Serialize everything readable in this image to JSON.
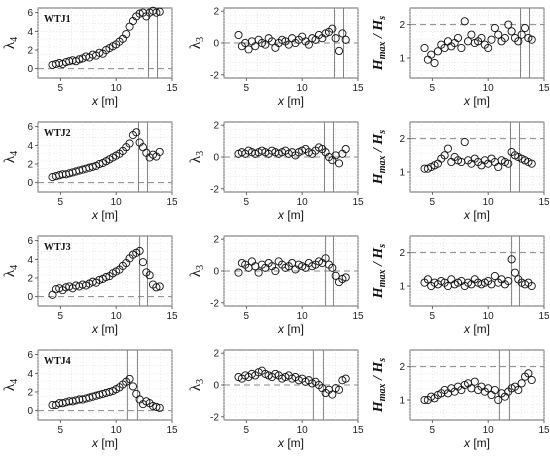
{
  "chart_data": [
    {
      "type": "scatter",
      "row": "WTJ1",
      "panel_label": "WTJ1",
      "ylabel": "λ4",
      "xlabel": "x [m]",
      "xlim": [
        3,
        15
      ],
      "ylim": [
        -1,
        6.5
      ],
      "xticks": [
        5,
        10,
        15
      ],
      "yticks": [
        0,
        2,
        4,
        6
      ],
      "dashed_y": 0,
      "vlines": [
        12.9,
        13.7
      ],
      "grid": true,
      "x": [
        4.3,
        4.6,
        4.9,
        5.2,
        5.5,
        5.8,
        6.1,
        6.4,
        6.7,
        7.0,
        7.3,
        7.6,
        7.9,
        8.2,
        8.5,
        8.8,
        9.1,
        9.4,
        9.7,
        10.0,
        10.3,
        10.6,
        10.9,
        11.2,
        11.5,
        11.8,
        12.1,
        12.4,
        12.7,
        13.0,
        13.3,
        13.6,
        13.9
      ],
      "y": [
        0.4,
        0.5,
        0.6,
        0.5,
        0.7,
        0.8,
        0.9,
        0.8,
        1.0,
        1.1,
        1.3,
        1.2,
        1.5,
        1.4,
        1.7,
        1.6,
        2.0,
        2.2,
        2.4,
        2.6,
        2.9,
        3.2,
        3.7,
        4.5,
        5.1,
        5.6,
        5.9,
        6.0,
        5.6,
        6.0,
        6.2,
        6.0,
        6.1
      ]
    },
    {
      "type": "scatter",
      "row": "WTJ1",
      "ylabel": "λ3",
      "xlabel": "x [m]",
      "xlim": [
        3,
        15
      ],
      "ylim": [
        -2.2,
        2.2
      ],
      "xticks": [
        5,
        10,
        15
      ],
      "yticks": [
        -2,
        0,
        2
      ],
      "dashed_y": 0,
      "vlines": [
        12.9,
        13.7
      ],
      "grid": true,
      "x": [
        4.3,
        4.6,
        4.9,
        5.2,
        5.5,
        5.8,
        6.1,
        6.4,
        6.7,
        7.0,
        7.3,
        7.6,
        7.9,
        8.2,
        8.5,
        8.8,
        9.1,
        9.4,
        9.7,
        10.0,
        10.3,
        10.6,
        10.9,
        11.2,
        11.5,
        11.8,
        12.1,
        12.4,
        12.7,
        13.0,
        13.3,
        13.6,
        13.9
      ],
      "y": [
        0.5,
        -0.2,
        0.0,
        -0.4,
        0.1,
        -0.2,
        0.2,
        0.0,
        -0.1,
        0.3,
        0.1,
        -0.3,
        0.0,
        0.2,
        0.1,
        -0.1,
        0.3,
        0.0,
        0.2,
        0.4,
        0.1,
        -0.1,
        0.3,
        0.2,
        0.5,
        0.3,
        0.6,
        0.7,
        0.9,
        0.3,
        -0.5,
        0.6,
        0.2
      ]
    },
    {
      "type": "scatter",
      "row": "WTJ1",
      "ylabel": "Hmax/Hs",
      "xlabel": "x [m]",
      "xlim": [
        3,
        15
      ],
      "ylim": [
        0.4,
        2.5
      ],
      "xticks": [
        5,
        10,
        15
      ],
      "yticks": [
        1,
        2
      ],
      "dashed_y": 2,
      "vlines": [
        12.9,
        13.7
      ],
      "grid": true,
      "x": [
        4.3,
        4.6,
        4.9,
        5.2,
        5.5,
        5.8,
        6.1,
        6.4,
        6.7,
        7.0,
        7.3,
        7.6,
        7.9,
        8.2,
        8.5,
        8.8,
        9.1,
        9.4,
        9.7,
        10.0,
        10.3,
        10.6,
        10.9,
        11.2,
        11.5,
        11.8,
        12.1,
        12.4,
        12.7,
        13.0,
        13.3,
        13.6,
        13.9
      ],
      "y": [
        1.3,
        0.95,
        1.1,
        0.85,
        1.2,
        1.4,
        1.3,
        1.5,
        1.35,
        1.45,
        1.6,
        1.3,
        2.1,
        1.5,
        1.7,
        1.45,
        1.5,
        1.6,
        1.4,
        1.3,
        1.55,
        1.9,
        1.7,
        1.5,
        1.6,
        2.0,
        1.8,
        1.6,
        1.5,
        1.7,
        1.9,
        1.6,
        1.55
      ]
    },
    {
      "type": "scatter",
      "row": "WTJ2",
      "panel_label": "WTJ2",
      "ylabel": "λ4",
      "xlabel": "x [m]",
      "xlim": [
        3,
        15
      ],
      "ylim": [
        -1,
        6.5
      ],
      "xticks": [
        5,
        10,
        15
      ],
      "yticks": [
        0,
        2,
        4,
        6
      ],
      "dashed_y": 0,
      "vlines": [
        12.0,
        12.8
      ],
      "grid": true,
      "x": [
        4.3,
        4.6,
        4.9,
        5.2,
        5.5,
        5.8,
        6.1,
        6.4,
        6.7,
        7.0,
        7.3,
        7.6,
        7.9,
        8.2,
        8.5,
        8.8,
        9.1,
        9.4,
        9.7,
        10.0,
        10.3,
        10.6,
        10.9,
        11.2,
        11.5,
        11.8,
        12.1,
        12.4,
        12.7,
        13.0,
        13.3,
        13.6,
        13.9
      ],
      "y": [
        0.6,
        0.7,
        0.8,
        0.9,
        0.9,
        1.0,
        1.1,
        1.2,
        1.3,
        1.4,
        1.5,
        1.6,
        1.7,
        1.8,
        2.0,
        2.1,
        2.3,
        2.5,
        2.7,
        2.9,
        3.1,
        3.4,
        3.8,
        4.2,
        5.1,
        5.4,
        4.3,
        3.8,
        3.2,
        2.7,
        3.0,
        2.8,
        3.3
      ]
    },
    {
      "type": "scatter",
      "row": "WTJ2",
      "ylabel": "λ3",
      "xlabel": "x [m]",
      "xlim": [
        3,
        15
      ],
      "ylim": [
        -2.2,
        2.2
      ],
      "xticks": [
        5,
        10,
        15
      ],
      "yticks": [
        -2,
        0,
        2
      ],
      "dashed_y": 0,
      "vlines": [
        12.0,
        12.8
      ],
      "grid": true,
      "x": [
        4.3,
        4.6,
        4.9,
        5.2,
        5.5,
        5.8,
        6.1,
        6.4,
        6.7,
        7.0,
        7.3,
        7.6,
        7.9,
        8.2,
        8.5,
        8.8,
        9.1,
        9.4,
        9.7,
        10.0,
        10.3,
        10.6,
        10.9,
        11.2,
        11.5,
        11.8,
        12.1,
        12.4,
        12.7,
        13.0,
        13.3,
        13.6,
        13.9
      ],
      "y": [
        0.2,
        0.3,
        0.2,
        0.4,
        0.3,
        0.2,
        0.3,
        0.4,
        0.3,
        0.2,
        0.4,
        0.3,
        0.2,
        0.3,
        0.4,
        0.2,
        0.3,
        0.1,
        0.3,
        0.4,
        0.5,
        0.3,
        0.2,
        0.4,
        0.6,
        0.5,
        0.3,
        0.0,
        -0.2,
        0.1,
        -0.4,
        0.2,
        0.5
      ]
    },
    {
      "type": "scatter",
      "row": "WTJ2",
      "ylabel": "Hmax/Hs",
      "xlabel": "x [m]",
      "xlim": [
        3,
        15
      ],
      "ylim": [
        0.4,
        2.5
      ],
      "xticks": [
        5,
        10,
        15
      ],
      "yticks": [
        1,
        2
      ],
      "dashed_y": 2,
      "vlines": [
        12.0,
        12.8
      ],
      "grid": true,
      "x": [
        4.3,
        4.6,
        4.9,
        5.2,
        5.5,
        5.8,
        6.1,
        6.4,
        6.7,
        7.0,
        7.3,
        7.6,
        7.9,
        8.2,
        8.5,
        8.8,
        9.1,
        9.4,
        9.7,
        10.0,
        10.3,
        10.6,
        10.9,
        11.2,
        11.5,
        11.8,
        12.1,
        12.4,
        12.7,
        13.0,
        13.3,
        13.6,
        13.9
      ],
      "y": [
        1.1,
        1.1,
        1.15,
        1.2,
        1.25,
        1.4,
        1.5,
        1.7,
        1.3,
        1.45,
        1.35,
        1.3,
        1.9,
        1.35,
        1.25,
        1.4,
        1.3,
        1.2,
        1.35,
        1.25,
        1.4,
        1.3,
        1.15,
        1.35,
        1.3,
        1.25,
        1.6,
        1.5,
        1.45,
        1.4,
        1.35,
        1.3,
        1.25
      ]
    },
    {
      "type": "scatter",
      "row": "WTJ3",
      "panel_label": "WTJ3",
      "ylabel": "λ4",
      "xlabel": "x [m]",
      "xlim": [
        3,
        15
      ],
      "ylim": [
        -1,
        6.5
      ],
      "xticks": [
        5,
        10,
        15
      ],
      "yticks": [
        0,
        2,
        4,
        6
      ],
      "dashed_y": 0,
      "vlines": [
        12.1,
        12.8
      ],
      "grid": true,
      "x": [
        4.3,
        4.6,
        4.9,
        5.2,
        5.5,
        5.8,
        6.1,
        6.4,
        6.7,
        7.0,
        7.3,
        7.6,
        7.9,
        8.2,
        8.5,
        8.8,
        9.1,
        9.4,
        9.7,
        10.0,
        10.3,
        10.6,
        10.9,
        11.2,
        11.5,
        11.8,
        12.1,
        12.4,
        12.7,
        13.0,
        13.3,
        13.6,
        13.9
      ],
      "y": [
        0.2,
        0.8,
        0.9,
        0.7,
        1.0,
        1.1,
        0.9,
        1.2,
        1.1,
        1.3,
        1.2,
        1.4,
        1.6,
        1.5,
        1.8,
        1.9,
        2.1,
        2.2,
        2.5,
        2.7,
        2.9,
        3.3,
        3.6,
        4.1,
        4.5,
        4.7,
        4.9,
        3.7,
        2.6,
        2.3,
        1.3,
        1.0,
        1.1
      ]
    },
    {
      "type": "scatter",
      "row": "WTJ3",
      "ylabel": "λ3",
      "xlabel": "x [m]",
      "xlim": [
        3,
        15
      ],
      "ylim": [
        -2.2,
        2.2
      ],
      "xticks": [
        5,
        10,
        15
      ],
      "yticks": [
        -2,
        0,
        2
      ],
      "dashed_y": 0,
      "vlines": [
        12.1,
        12.8
      ],
      "grid": true,
      "x": [
        4.3,
        4.6,
        4.9,
        5.2,
        5.5,
        5.8,
        6.1,
        6.4,
        6.7,
        7.0,
        7.3,
        7.6,
        7.9,
        8.2,
        8.5,
        8.8,
        9.1,
        9.4,
        9.7,
        10.0,
        10.3,
        10.6,
        10.9,
        11.2,
        11.5,
        11.8,
        12.1,
        12.4,
        12.7,
        13.0,
        13.3,
        13.6,
        13.9
      ],
      "y": [
        -0.1,
        0.5,
        0.4,
        0.2,
        0.6,
        0.3,
        -0.1,
        0.4,
        0.2,
        0.5,
        0.3,
        0.0,
        0.6,
        0.4,
        0.2,
        0.3,
        0.5,
        0.1,
        0.4,
        0.3,
        0.2,
        0.5,
        0.3,
        0.4,
        0.6,
        0.5,
        0.8,
        0.4,
        0.2,
        -0.3,
        -0.7,
        -0.5,
        -0.4
      ]
    },
    {
      "type": "scatter",
      "row": "WTJ3",
      "ylabel": "Hmax/Hs",
      "xlabel": "x [m]",
      "xlim": [
        3,
        15
      ],
      "ylim": [
        0.4,
        2.5
      ],
      "xticks": [
        5,
        10,
        15
      ],
      "yticks": [
        1,
        2
      ],
      "dashed_y": 2,
      "vlines": [
        12.1,
        12.8
      ],
      "grid": true,
      "x": [
        4.3,
        4.6,
        4.9,
        5.2,
        5.5,
        5.8,
        6.1,
        6.4,
        6.7,
        7.0,
        7.3,
        7.6,
        7.9,
        8.2,
        8.5,
        8.8,
        9.1,
        9.4,
        9.7,
        10.0,
        10.3,
        10.6,
        10.9,
        11.2,
        11.5,
        11.8,
        12.1,
        12.4,
        12.7,
        13.0,
        13.3,
        13.6,
        13.9
      ],
      "y": [
        1.1,
        1.2,
        1.0,
        1.1,
        1.05,
        1.15,
        1.1,
        1.0,
        1.2,
        1.05,
        1.1,
        1.15,
        1.0,
        1.1,
        1.05,
        1.2,
        1.1,
        1.05,
        1.1,
        1.15,
        1.05,
        1.3,
        1.1,
        1.2,
        1.05,
        1.15,
        1.8,
        1.4,
        1.2,
        1.1,
        1.05,
        1.1,
        1.0
      ]
    },
    {
      "type": "scatter",
      "row": "WTJ4",
      "panel_label": "WTJ4",
      "ylabel": "λ4",
      "xlabel": "x [m]",
      "xlim": [
        3,
        15
      ],
      "ylim": [
        -1,
        6.5
      ],
      "xticks": [
        5,
        10,
        15
      ],
      "yticks": [
        0,
        2,
        4,
        6
      ],
      "dashed_y": 0,
      "vlines": [
        11.0,
        11.9
      ],
      "grid": true,
      "x": [
        4.3,
        4.6,
        4.9,
        5.2,
        5.5,
        5.8,
        6.1,
        6.4,
        6.7,
        7.0,
        7.3,
        7.6,
        7.9,
        8.2,
        8.5,
        8.8,
        9.1,
        9.4,
        9.7,
        10.0,
        10.3,
        10.6,
        10.9,
        11.2,
        11.5,
        11.8,
        12.1,
        12.4,
        12.7,
        13.0,
        13.3,
        13.6,
        13.9
      ],
      "y": [
        0.6,
        0.6,
        0.8,
        0.8,
        0.9,
        1.0,
        1.0,
        1.1,
        1.2,
        1.2,
        1.3,
        1.4,
        1.5,
        1.6,
        1.7,
        1.8,
        1.9,
        2.0,
        2.1,
        2.3,
        2.5,
        2.8,
        3.1,
        3.4,
        2.6,
        1.8,
        1.2,
        0.7,
        1.0,
        0.8,
        0.5,
        0.4,
        0.3
      ]
    },
    {
      "type": "scatter",
      "row": "WTJ4",
      "ylabel": "λ3",
      "xlabel": "x [m]",
      "xlim": [
        3,
        15
      ],
      "ylim": [
        -2.2,
        2.2
      ],
      "xticks": [
        5,
        10,
        15
      ],
      "yticks": [
        -2,
        0,
        2
      ],
      "dashed_y": 0,
      "vlines": [
        11.0,
        11.9
      ],
      "grid": true,
      "x": [
        4.3,
        4.6,
        4.9,
        5.2,
        5.5,
        5.8,
        6.1,
        6.4,
        6.7,
        7.0,
        7.3,
        7.6,
        7.9,
        8.2,
        8.5,
        8.8,
        9.1,
        9.4,
        9.7,
        10.0,
        10.3,
        10.6,
        10.9,
        11.2,
        11.5,
        11.8,
        12.1,
        12.4,
        12.7,
        13.0,
        13.3,
        13.6,
        13.9
      ],
      "y": [
        0.5,
        0.4,
        0.6,
        0.5,
        0.7,
        0.6,
        0.8,
        0.9,
        0.7,
        0.6,
        0.5,
        0.7,
        0.6,
        0.4,
        0.5,
        0.6,
        0.4,
        0.5,
        0.3,
        0.4,
        0.2,
        0.3,
        0.1,
        0.2,
        0.0,
        -0.2,
        -0.5,
        -0.3,
        -0.6,
        -0.2,
        -0.3,
        0.3,
        0.4
      ]
    },
    {
      "type": "scatter",
      "row": "WTJ4",
      "ylabel": "Hmax/Hs",
      "xlabel": "x [m]",
      "xlim": [
        3,
        15
      ],
      "ylim": [
        0.4,
        2.5
      ],
      "xticks": [
        5,
        10,
        15
      ],
      "yticks": [
        1,
        2
      ],
      "dashed_y": 2,
      "vlines": [
        11.0,
        11.9
      ],
      "grid": true,
      "x": [
        4.3,
        4.6,
        4.9,
        5.2,
        5.5,
        5.8,
        6.1,
        6.4,
        6.7,
        7.0,
        7.3,
        7.6,
        7.9,
        8.2,
        8.5,
        8.8,
        9.1,
        9.4,
        9.7,
        10.0,
        10.3,
        10.6,
        10.9,
        11.2,
        11.5,
        11.8,
        12.1,
        12.4,
        12.7,
        13.0,
        13.3,
        13.6,
        13.9
      ],
      "y": [
        1.0,
        1.0,
        1.1,
        1.05,
        1.15,
        1.2,
        1.3,
        1.2,
        1.35,
        1.25,
        1.4,
        1.3,
        1.45,
        1.5,
        1.35,
        1.55,
        1.3,
        1.4,
        1.25,
        1.35,
        1.15,
        1.3,
        1.0,
        1.2,
        1.1,
        1.25,
        1.35,
        1.4,
        1.3,
        1.5,
        1.7,
        1.8,
        1.6
      ]
    }
  ]
}
